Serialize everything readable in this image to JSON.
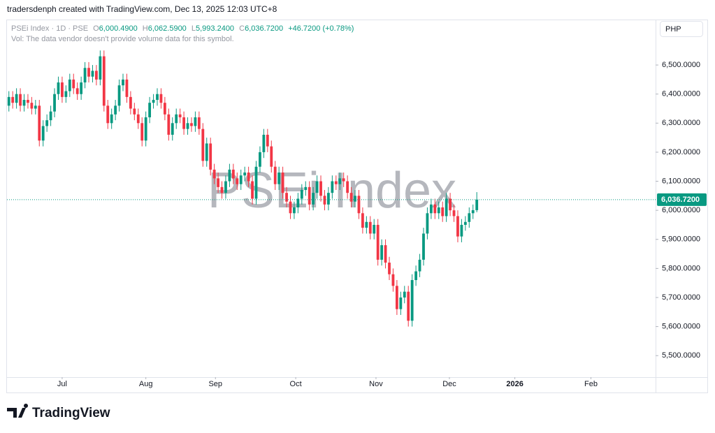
{
  "header": {
    "credit": "tradersdenph created with TradingView.com, Dec 13, 2025 12:03 UTC+8"
  },
  "legend": {
    "symbol": "PSEi Index · 1D · PSE",
    "o_label": "O",
    "o": "6,000.4900",
    "h_label": "H",
    "h": "6,062.5900",
    "l_label": "L",
    "l": "5,993.2400",
    "c_label": "C",
    "c": "6,036.7200",
    "change": "+46.7200 (+0.78%)",
    "volume_note": "Vol: The data vendor doesn't provide volume data for this symbol."
  },
  "currency": "PHP",
  "footer": {
    "logo": "TradingView"
  },
  "chart_data": {
    "type": "candlestick",
    "watermark": "PSEi Index",
    "up_color": "#089981",
    "down_color": "#f23645",
    "last_price": 6036.72,
    "last_price_label": "6,036.7200",
    "xlim": [
      -0.5,
      170
    ],
    "ylim": [
      5426,
      6654
    ],
    "xticks": [
      {
        "value": 14,
        "label": "Jul"
      },
      {
        "value": 36,
        "label": "Aug"
      },
      {
        "value": 54.3,
        "label": "Sep"
      },
      {
        "value": 75.4,
        "label": "Oct"
      },
      {
        "value": 96.5,
        "label": "Nov"
      },
      {
        "value": 115.8,
        "label": "Dec"
      },
      {
        "value": 133,
        "label": "2026"
      },
      {
        "value": 153,
        "label": "Feb"
      }
    ],
    "yticks": [
      {
        "value": 5500,
        "label": "5,500.0000"
      },
      {
        "value": 5600,
        "label": "5,600.0000"
      },
      {
        "value": 5700,
        "label": "5,700.0000"
      },
      {
        "value": 5800,
        "label": "5,800.0000"
      },
      {
        "value": 5900,
        "label": "5,900.0000"
      },
      {
        "value": 6000,
        "label": "6,000.0000"
      },
      {
        "value": 6100,
        "label": "6,100.0000"
      },
      {
        "value": 6200,
        "label": "6,200.0000"
      },
      {
        "value": 6300,
        "label": "6,300.0000"
      },
      {
        "value": 6400,
        "label": "6,400.0000"
      },
      {
        "value": 6500,
        "label": "6,500.0000"
      }
    ],
    "open": [
      6360,
      6390,
      6370,
      6400,
      6360,
      6380,
      6370,
      6350,
      6360,
      6240,
      6290,
      6310,
      6340,
      6400,
      6440,
      6390,
      6410,
      6450,
      6420,
      6400,
      6440,
      6490,
      6460,
      6480,
      6450,
      6530,
      6360,
      6300,
      6330,
      6360,
      6430,
      6450,
      6390,
      6350,
      6330,
      6300,
      6240,
      6320,
      6370,
      6380,
      6400,
      6370,
      6330,
      6260,
      6300,
      6330,
      6320,
      6280,
      6300,
      6290,
      6320,
      6280,
      6170,
      6230,
      6140,
      6110,
      6080,
      6060,
      6100,
      6140,
      6110,
      6090,
      6120,
      6130,
      6100,
      6040,
      6150,
      6200,
      6260,
      6220,
      6150,
      6090,
      6130,
      6060,
      6030,
      5990,
      6010,
      6040,
      6070,
      6080,
      6020,
      6060,
      6100,
      6050,
      6020,
      6060,
      6100,
      6090,
      6110,
      6100,
      6060,
      6030,
      6050,
      5990,
      5940,
      5960,
      5920,
      5950,
      5830,
      5880,
      5820,
      5780,
      5740,
      5660,
      5700,
      5720,
      5620,
      5760,
      5790,
      5830,
      5920,
      5990,
      6020,
      5990,
      6010,
      5980,
      6040,
      6000,
      5980,
      5910,
      5950,
      5960,
      5990,
      6000.49
    ],
    "high": [
      6410,
      6410,
      6420,
      6420,
      6400,
      6400,
      6390,
      6380,
      6380,
      6310,
      6330,
      6360,
      6420,
      6460,
      6460,
      6430,
      6470,
      6470,
      6440,
      6460,
      6510,
      6510,
      6500,
      6500,
      6550,
      6550,
      6380,
      6350,
      6380,
      6450,
      6470,
      6470,
      6410,
      6370,
      6350,
      6320,
      6340,
      6390,
      6400,
      6420,
      6420,
      6390,
      6350,
      6320,
      6350,
      6350,
      6340,
      6320,
      6320,
      6340,
      6340,
      6300,
      6250,
      6250,
      6160,
      6130,
      6100,
      6120,
      6160,
      6160,
      6130,
      6140,
      6150,
      6150,
      6120,
      6170,
      6220,
      6280,
      6280,
      6240,
      6170,
      6150,
      6150,
      6080,
      6050,
      6030,
      6060,
      6090,
      6100,
      6100,
      6080,
      6120,
      6120,
      6070,
      6080,
      6120,
      6120,
      6130,
      6130,
      6120,
      6080,
      6070,
      6070,
      6010,
      5980,
      5980,
      5970,
      5970,
      5900,
      5900,
      5840,
      5800,
      5760,
      5720,
      5740,
      5740,
      5780,
      5810,
      5850,
      5940,
      6010,
      6040,
      6040,
      6030,
      6030,
      6060,
      6060,
      6020,
      6000,
      5970,
      5980,
      6010,
      6020,
      6062.59
    ],
    "low": [
      6340,
      6350,
      6350,
      6340,
      6340,
      6350,
      6330,
      6330,
      6220,
      6220,
      6270,
      6290,
      6320,
      6380,
      6370,
      6370,
      6390,
      6400,
      6380,
      6380,
      6420,
      6440,
      6440,
      6430,
      6430,
      6340,
      6280,
      6280,
      6310,
      6340,
      6410,
      6370,
      6330,
      6310,
      6280,
      6220,
      6220,
      6300,
      6350,
      6360,
      6350,
      6310,
      6240,
      6240,
      6280,
      6300,
      6260,
      6260,
      6270,
      6270,
      6260,
      6150,
      6150,
      6120,
      6090,
      6060,
      6040,
      6040,
      6080,
      6090,
      6070,
      6070,
      6100,
      6080,
      6020,
      6020,
      6130,
      6180,
      6200,
      6130,
      6070,
      6070,
      6040,
      6010,
      5970,
      5970,
      5990,
      6020,
      6050,
      6000,
      6000,
      6040,
      6030,
      6000,
      6000,
      6040,
      6070,
      6070,
      6080,
      6040,
      6010,
      6010,
      5970,
      5920,
      5920,
      5900,
      5900,
      5810,
      5810,
      5800,
      5760,
      5720,
      5640,
      5640,
      5680,
      5600,
      5600,
      5740,
      5770,
      5810,
      5900,
      5970,
      5970,
      5970,
      5960,
      5960,
      5980,
      5960,
      5890,
      5890,
      5930,
      5940,
      5970,
      5993.24
    ],
    "close": [
      6390,
      6370,
      6400,
      6360,
      6380,
      6370,
      6350,
      6360,
      6240,
      6290,
      6310,
      6340,
      6400,
      6440,
      6390,
      6410,
      6450,
      6420,
      6400,
      6440,
      6490,
      6460,
      6480,
      6450,
      6530,
      6360,
      6300,
      6330,
      6360,
      6430,
      6450,
      6390,
      6350,
      6330,
      6300,
      6240,
      6320,
      6370,
      6380,
      6400,
      6370,
      6330,
      6260,
      6300,
      6330,
      6320,
      6280,
      6300,
      6290,
      6320,
      6280,
      6170,
      6230,
      6140,
      6110,
      6080,
      6060,
      6100,
      6140,
      6110,
      6090,
      6120,
      6130,
      6100,
      6040,
      6150,
      6200,
      6260,
      6220,
      6150,
      6090,
      6130,
      6060,
      6030,
      5990,
      6010,
      6040,
      6070,
      6080,
      6020,
      6060,
      6100,
      6050,
      6020,
      6060,
      6100,
      6090,
      6110,
      6100,
      6060,
      6030,
      6050,
      5990,
      5940,
      5960,
      5920,
      5950,
      5830,
      5880,
      5820,
      5780,
      5740,
      5660,
      5700,
      5720,
      5620,
      5760,
      5790,
      5830,
      5920,
      5990,
      6020,
      5990,
      6010,
      5980,
      6040,
      6000,
      5980,
      5910,
      5950,
      5960,
      5990,
      6000.49,
      6036.72
    ]
  }
}
